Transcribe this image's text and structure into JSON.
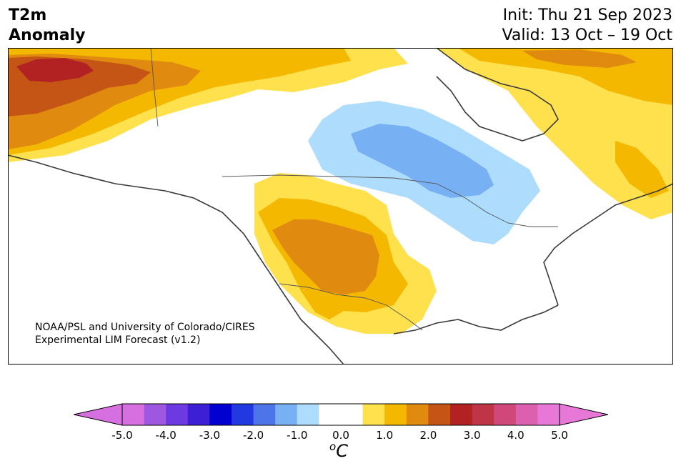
{
  "header": {
    "title_line1": "T2m",
    "title_line2": "Anomaly",
    "init_line": "Init: Thu 21 Sep 2023",
    "valid_line": "Valid: 13 Oct – 19 Oct"
  },
  "credit": {
    "line1": "NOAA/PSL and University of Colorado/CIRES",
    "line2": "Experimental LIM Forecast (v1.2)"
  },
  "colorbar": {
    "unit_prefix": "o",
    "unit_main": "C",
    "ticks": [
      "-5.0",
      "-4.0",
      "-3.0",
      "-2.0",
      "-1.0",
      "0.0",
      "1.0",
      "2.0",
      "3.0",
      "4.0",
      "5.0"
    ],
    "under_color": "#d670e0",
    "over_color": "#e878d8",
    "bins": [
      {
        "color": "#d670e0"
      },
      {
        "color": "#9e57e0"
      },
      {
        "color": "#6c3ae0"
      },
      {
        "color": "#3d1fd6"
      },
      {
        "color": "#0000d0"
      },
      {
        "color": "#2238e0"
      },
      {
        "color": "#4d74e8"
      },
      {
        "color": "#78b0f4"
      },
      {
        "color": "#addcfd"
      },
      {
        "color": "#ffffff"
      },
      {
        "color": "#ffffff"
      },
      {
        "color": "#ffe04d"
      },
      {
        "color": "#f4b800"
      },
      {
        "color": "#e08a10"
      },
      {
        "color": "#c55514"
      },
      {
        "color": "#b22222"
      },
      {
        "color": "#c03448"
      },
      {
        "color": "#d0487a"
      },
      {
        "color": "#dc60ae"
      },
      {
        "color": "#e878d8"
      }
    ]
  },
  "map_colors": {
    "light_yellow": "#ffe04d",
    "gold": "#f4b800",
    "orange": "#e08a10",
    "dark_orange": "#c55514",
    "red": "#b22222",
    "light_blue": "#addcfd",
    "mid_blue": "#78b0f4",
    "land_line": "#3a3a3a",
    "border_line": "#555555"
  }
}
